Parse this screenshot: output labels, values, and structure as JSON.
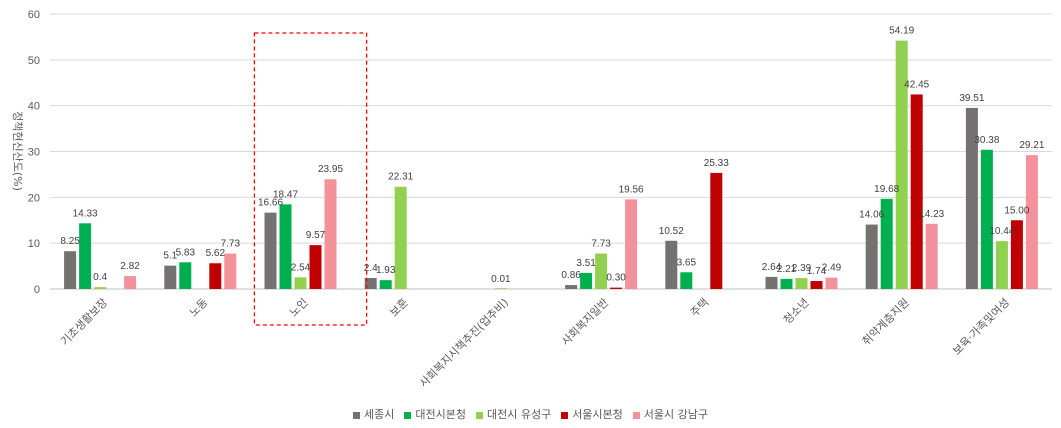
{
  "chart_data": {
    "type": "bar",
    "ylabel": "정책현신산도(%)",
    "ylim": [
      0,
      60
    ],
    "yticks": [
      0,
      10,
      20,
      30,
      40,
      50,
      60
    ],
    "grid": true,
    "legend_position": "bottom",
    "categories": [
      "기초생활보장",
      "노동",
      "노인",
      "보훈",
      "사회복지시책추진(업추비)",
      "사회복지일반",
      "주택",
      "청소년",
      "취약계층지원",
      "보육·가족및여성"
    ],
    "highlight_category": "노인",
    "series": [
      {
        "name": "세종시",
        "color": "#767171",
        "values": [
          8.25,
          5.1,
          16.66,
          2.4,
          null,
          0.86,
          10.52,
          2.64,
          14.06,
          39.51
        ],
        "labels": [
          "8.25",
          "5.1",
          "16.66",
          "2.4",
          "",
          "0.86",
          "10.52",
          "2.64",
          "14.06",
          "39.51"
        ]
      },
      {
        "name": "대전시본청",
        "color": "#00B050",
        "values": [
          14.33,
          5.83,
          18.47,
          1.93,
          null,
          3.51,
          3.65,
          2.21,
          19.68,
          30.38
        ],
        "labels": [
          "14.33",
          "5.83",
          "18.47",
          "1.93",
          "",
          "3.51",
          "3.65",
          "2.21",
          "19.68",
          "30.38"
        ]
      },
      {
        "name": "대전시 유성구",
        "color": "#92D050",
        "values": [
          0.4,
          null,
          2.54,
          22.31,
          0.01,
          7.73,
          null,
          2.39,
          54.19,
          10.44
        ],
        "labels": [
          "0.4",
          "",
          "2.54",
          "22.31",
          "0.01",
          "7.73",
          "",
          "2.39",
          "54.19",
          "10.44"
        ]
      },
      {
        "name": "서울시본청",
        "color": "#C00000",
        "values": [
          null,
          5.62,
          9.57,
          null,
          null,
          0.3,
          25.33,
          1.74,
          42.45,
          15.0
        ],
        "labels": [
          "",
          "5.62",
          "9.57",
          "",
          "",
          "0.30",
          "25.33",
          "1.74",
          "42.45",
          "15.00"
        ]
      },
      {
        "name": "서울시 강남구",
        "color": "#F4929C",
        "values": [
          2.82,
          7.73,
          23.95,
          null,
          null,
          19.56,
          null,
          2.49,
          14.23,
          29.21
        ],
        "labels": [
          "2.82",
          "7.73",
          "23.95",
          "",
          "",
          "19.56",
          "",
          "2.49",
          "14.23",
          "29.21"
        ]
      }
    ]
  }
}
